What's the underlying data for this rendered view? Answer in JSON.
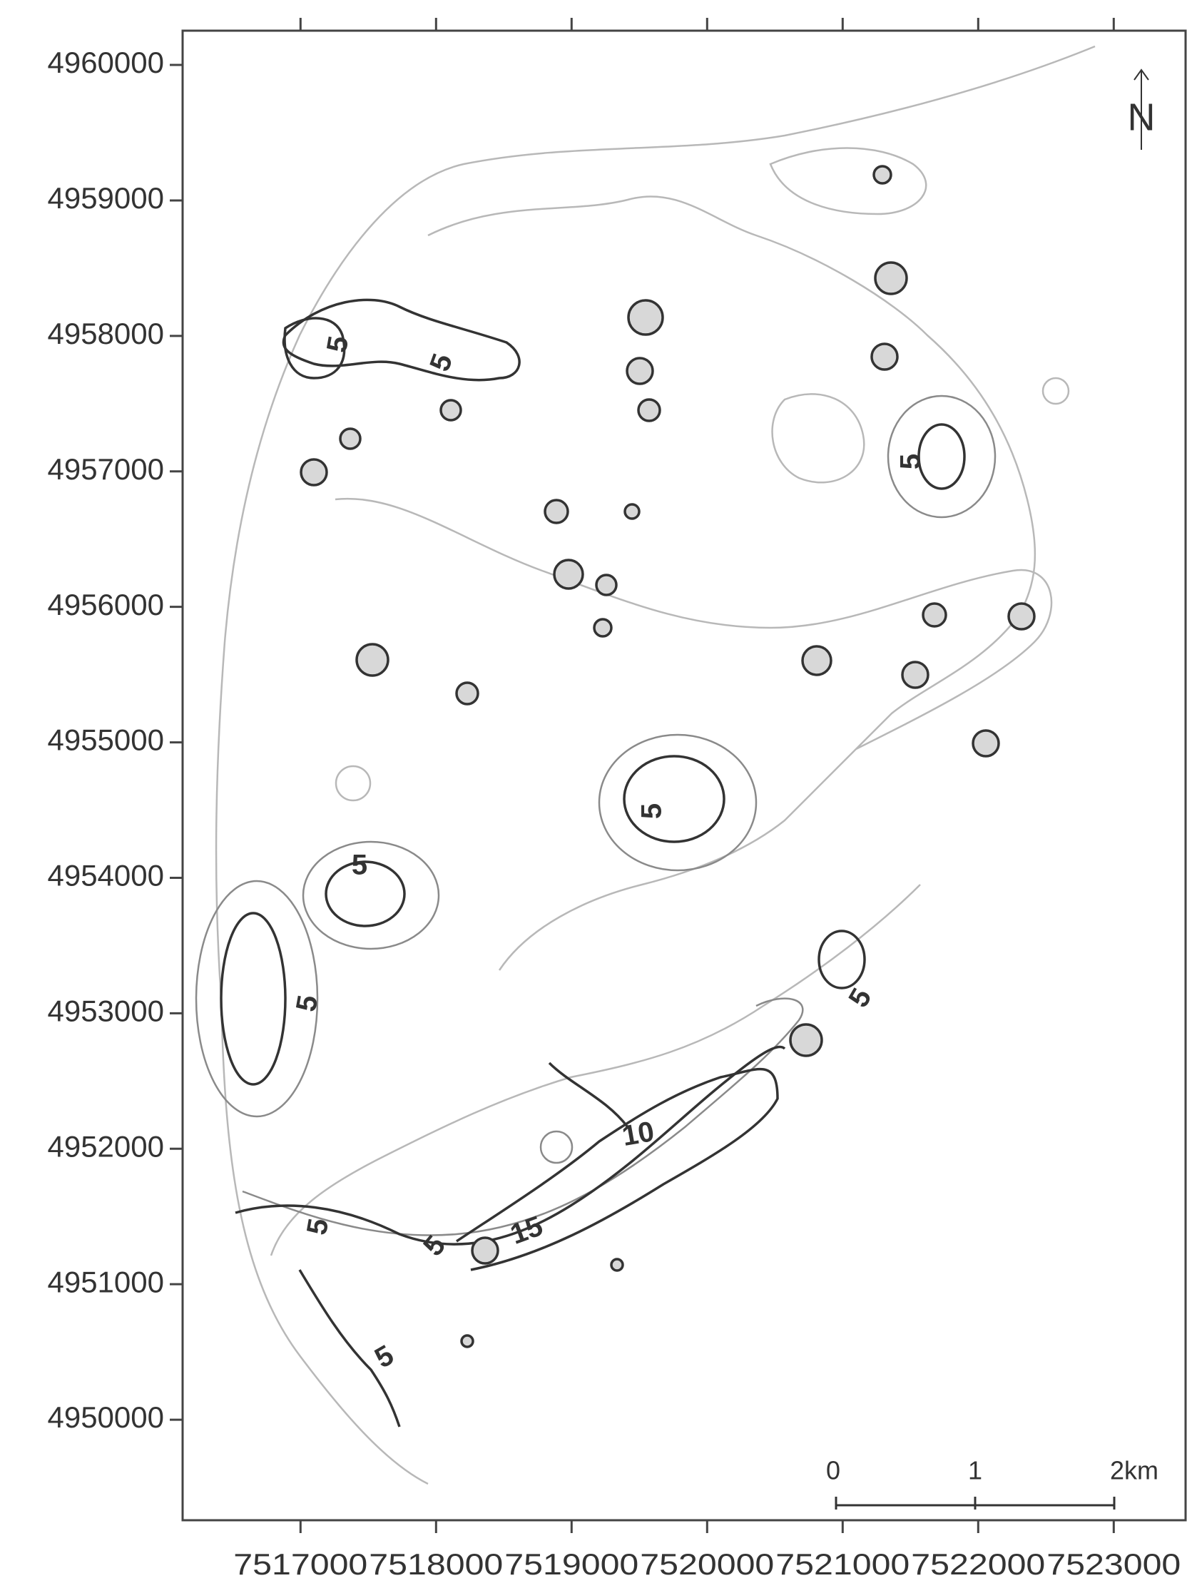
{
  "map_data": {
    "north_label": "N",
    "xlim": [
      7516130,
      7523530
    ],
    "ylim": [
      4949258,
      4960253
    ],
    "xticks": [
      7517000,
      7518000,
      7519000,
      7520000,
      7521000,
      7522000,
      7523000
    ],
    "yticks": [
      4950000,
      4951000,
      4952000,
      4953000,
      4954000,
      4955000,
      4956000,
      4957000,
      4958000,
      4959000,
      4960000
    ],
    "contour_labels": [
      5,
      5,
      5,
      5,
      5,
      5,
      5,
      10,
      15,
      5,
      5,
      5
    ],
    "scale_bar": {
      "labels": [
        "0",
        "1",
        "2km"
      ]
    }
  }
}
